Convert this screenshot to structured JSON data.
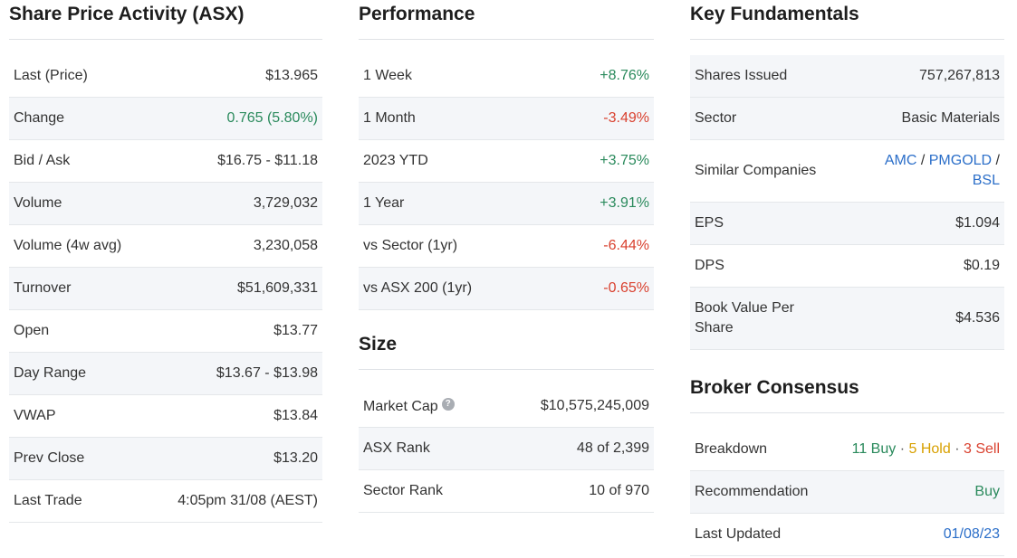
{
  "share_price": {
    "title": "Share Price Activity (ASX)",
    "rows": [
      {
        "label": "Last (Price)",
        "value": "$13.965"
      },
      {
        "label": "Change",
        "value": "0.765 (5.80%)"
      },
      {
        "label": "Bid / Ask",
        "value": "$16.75 - $11.18"
      },
      {
        "label": "Volume",
        "value": "3,729,032"
      },
      {
        "label": "Volume (4w avg)",
        "value": "3,230,058"
      },
      {
        "label": "Turnover",
        "value": "$51,609,331"
      },
      {
        "label": "Open",
        "value": "$13.77"
      },
      {
        "label": "Day Range",
        "value": "$13.67 - $13.98"
      },
      {
        "label": "VWAP",
        "value": "$13.84"
      },
      {
        "label": "Prev Close",
        "value": "$13.20"
      },
      {
        "label": "Last Trade",
        "value": "4:05pm 31/08 (AEST)"
      }
    ]
  },
  "performance": {
    "title": "Performance",
    "rows": [
      {
        "label": "1 Week",
        "value": "+8.76%"
      },
      {
        "label": "1 Month",
        "value": "-3.49%"
      },
      {
        "label": "2023 YTD",
        "value": "+3.75%"
      },
      {
        "label": "1 Year",
        "value": "+3.91%"
      },
      {
        "label": "vs Sector (1yr)",
        "value": "-6.44%"
      },
      {
        "label": "vs ASX 200 (1yr)",
        "value": "-0.65%"
      }
    ]
  },
  "size": {
    "title": "Size",
    "help_glyph": "?",
    "rows": [
      {
        "label": "Market Cap",
        "value": "$10,575,245,009"
      },
      {
        "label": "ASX Rank",
        "value": "48 of 2,399"
      },
      {
        "label": "Sector Rank",
        "value": "10 of 970"
      }
    ]
  },
  "fundamentals": {
    "title": "Key Fundamentals",
    "shares_issued": {
      "label": "Shares Issued",
      "value": "757,267,813"
    },
    "sector": {
      "label": "Sector",
      "value": "Basic Materials"
    },
    "similar": {
      "label": "Similar Companies",
      "companies": [
        "AMC",
        "PMGOLD",
        "BSL"
      ],
      "separator": "/"
    },
    "eps": {
      "label": "EPS",
      "value": "$1.094"
    },
    "dps": {
      "label": "DPS",
      "value": "$0.19"
    },
    "book_value": {
      "label": "Book Value Per Share",
      "value": "$4.536"
    }
  },
  "broker": {
    "title": "Broker Consensus",
    "breakdown": {
      "label": "Breakdown",
      "buy": "11 Buy",
      "hold": "5 Hold",
      "sell": "3 Sell",
      "separator": "·"
    },
    "recommendation": {
      "label": "Recommendation",
      "value": "Buy"
    },
    "last_updated": {
      "label": "Last Updated",
      "value": "01/08/23"
    }
  },
  "colors": {
    "positive": "#2a8a5c",
    "negative": "#d9412f",
    "link": "#2c6fc9",
    "hold": "#d8a000",
    "stripe": "#f4f6f9"
  },
  "icons": [
    "help-circle-icon"
  ]
}
